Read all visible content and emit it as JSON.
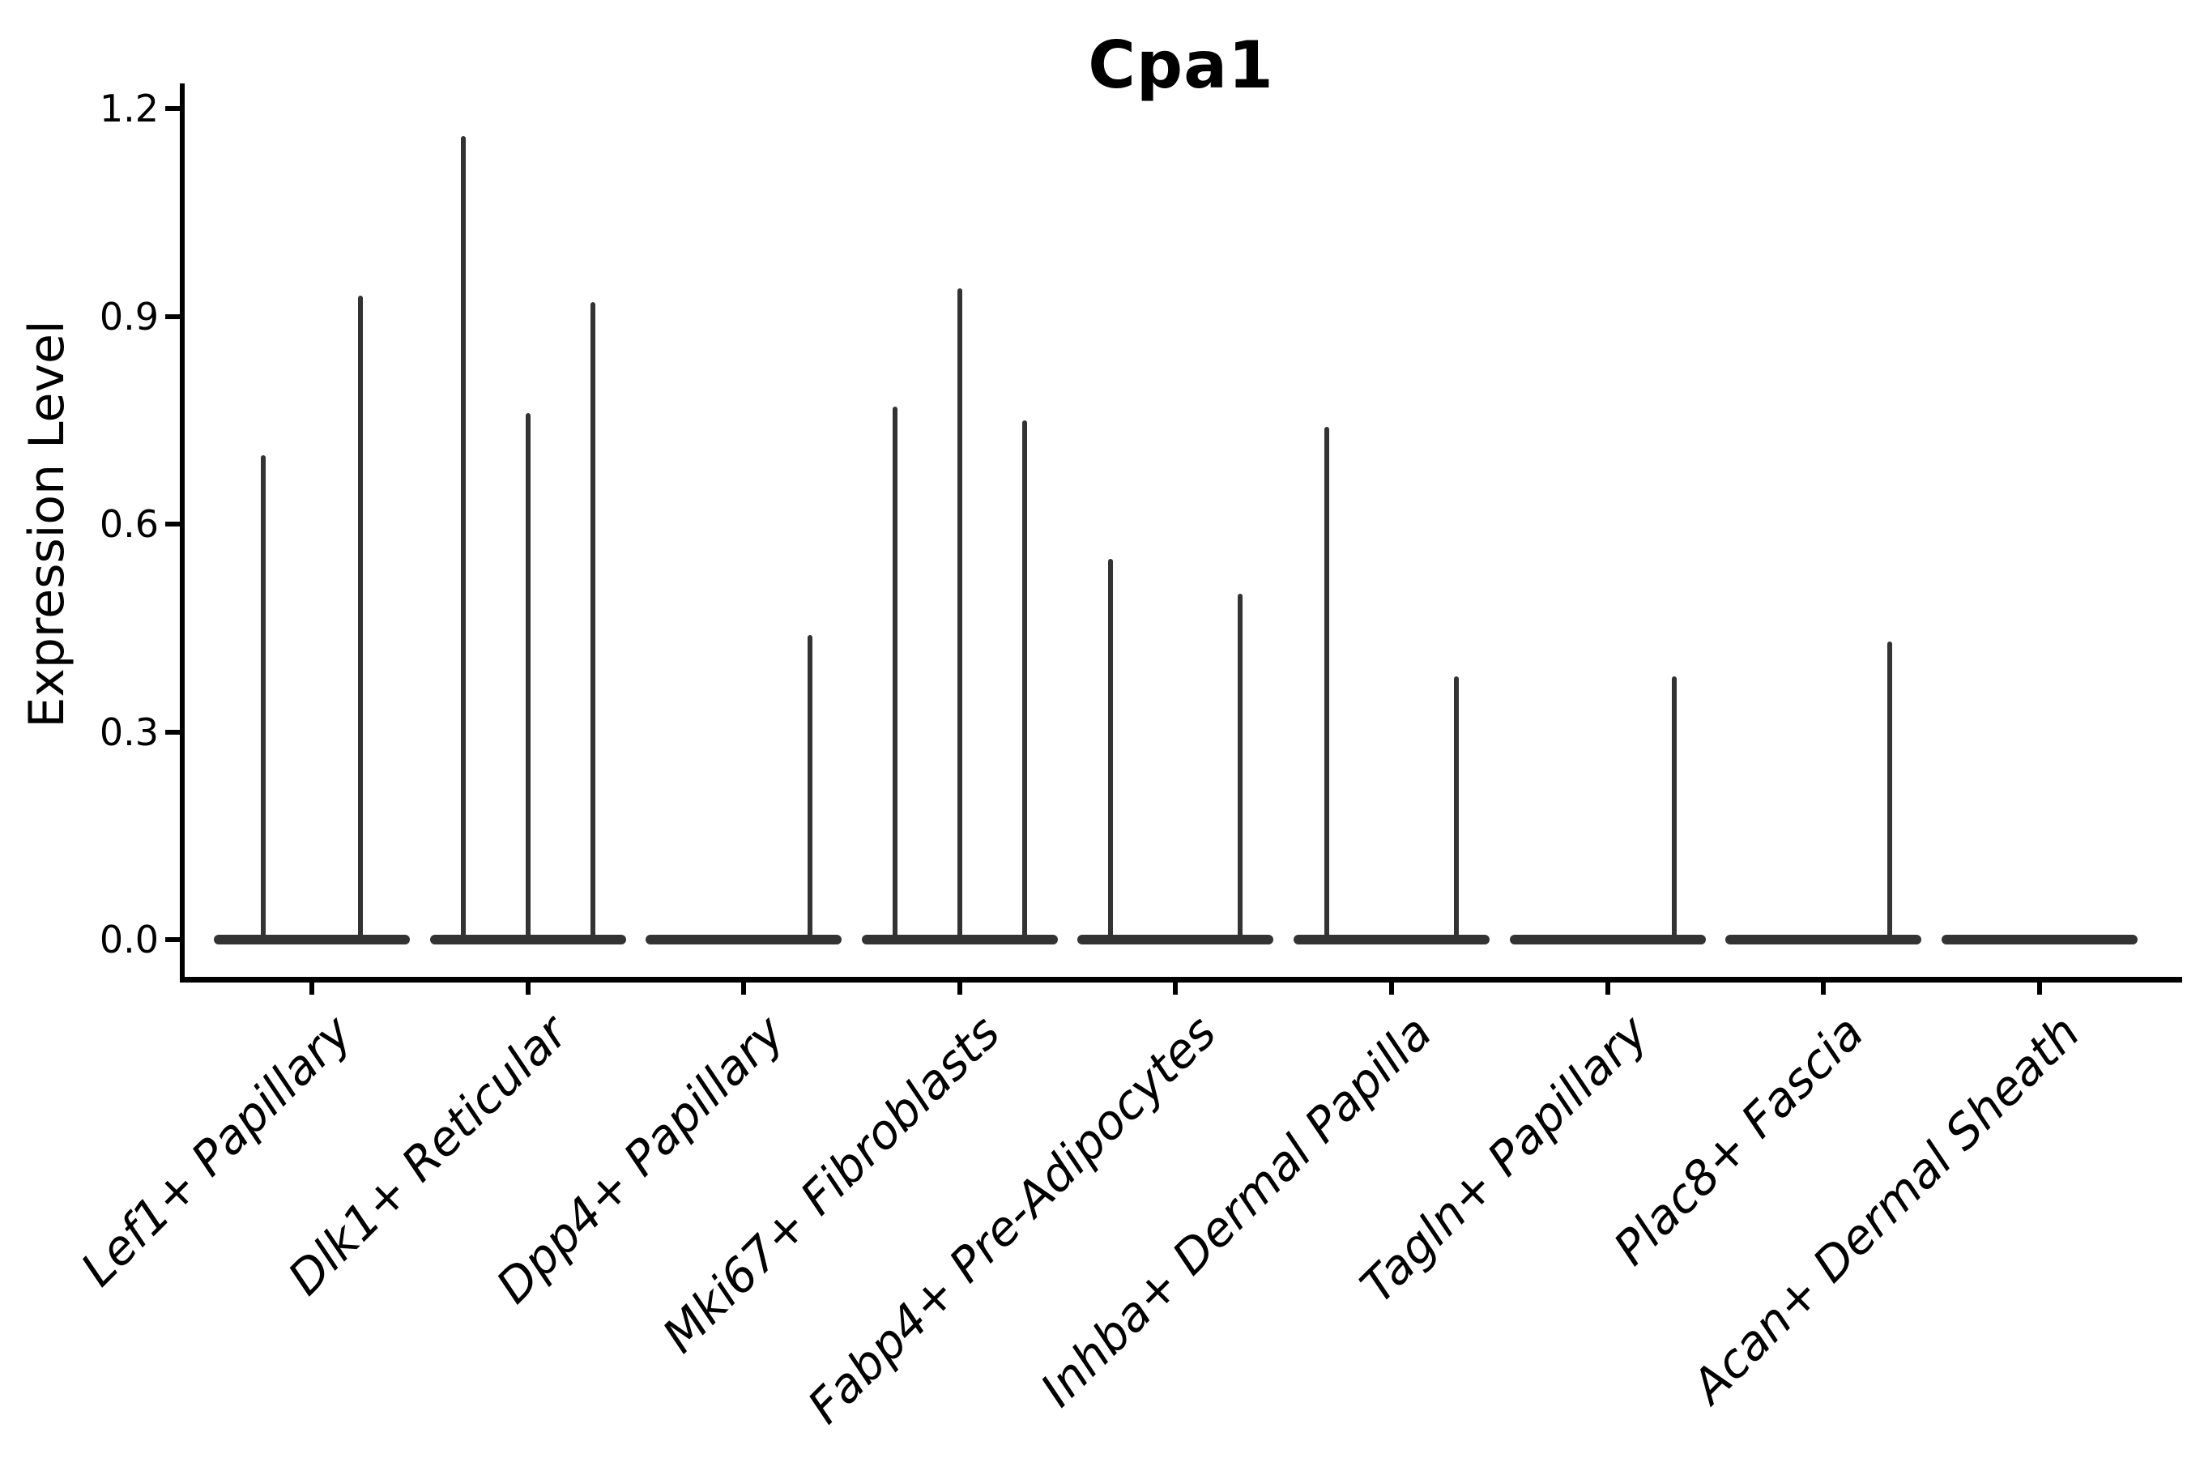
{
  "title": "Cpa1",
  "y_axis": {
    "label": "Expression Level"
  },
  "chart_data": {
    "type": "violin",
    "title": "Cpa1",
    "xlabel": "",
    "ylabel": "Expression Level",
    "ylim": [
      0,
      1.2
    ],
    "yticks": [
      "0.0",
      "0.3",
      "0.6",
      "0.9",
      "1.2"
    ],
    "grid": false,
    "legend": "none",
    "description": "Violin plot of Cpa1 expression; each cluster shows flat near-zero density bodies with thin vertical spikes reaching the maximum expression of rare expressing cells",
    "categories": [
      "Lef1+ Papillary",
      "Dlk1+ Reticular",
      "Dpp4+ Papillary",
      "Mki67+ Fibroblasts",
      "Fabp4+ Pre-Adipocytes",
      "Inhba+ Dermal Papilla",
      "Tagln+ Papillary",
      "Plac8+ Fascia",
      "Acan+ Dermal Sheath"
    ],
    "violins": [
      {
        "category": "Lef1+ Papillary",
        "spikes": [
          {
            "offset": -60,
            "max": 0.7
          },
          {
            "offset": 60,
            "max": 0.93
          }
        ]
      },
      {
        "category": "Dlk1+ Reticular",
        "spikes": [
          {
            "offset": -80,
            "max": 1.16
          },
          {
            "offset": 0,
            "max": 0.76
          },
          {
            "offset": 80,
            "max": 0.92
          }
        ]
      },
      {
        "category": "Dpp4+ Papillary",
        "spikes": [
          {
            "offset": 82,
            "max": 0.44
          }
        ]
      },
      {
        "category": "Mki67+ Fibroblasts",
        "spikes": [
          {
            "offset": -80,
            "max": 0.77
          },
          {
            "offset": 0,
            "max": 0.94
          },
          {
            "offset": 80,
            "max": 0.75
          }
        ]
      },
      {
        "category": "Fabp4+ Pre-Adipocytes",
        "spikes": [
          {
            "offset": -80,
            "max": 0.55
          },
          {
            "offset": 80,
            "max": 0.5
          }
        ]
      },
      {
        "category": "Inhba+ Dermal Papilla",
        "spikes": [
          {
            "offset": -80,
            "max": 0.74
          },
          {
            "offset": 80,
            "max": 0.38
          }
        ]
      },
      {
        "category": "Tagln+ Papillary",
        "spikes": [
          {
            "offset": 82,
            "max": 0.38
          }
        ]
      },
      {
        "category": "Plac8+ Fascia",
        "spikes": [
          {
            "offset": 82,
            "max": 0.43
          }
        ]
      },
      {
        "category": "Acan+ Dermal Sheath",
        "spikes": []
      }
    ],
    "colors": {
      "violin": "#333333",
      "axis": "#000000",
      "text": "#000000",
      "background": "#ffffff"
    }
  }
}
